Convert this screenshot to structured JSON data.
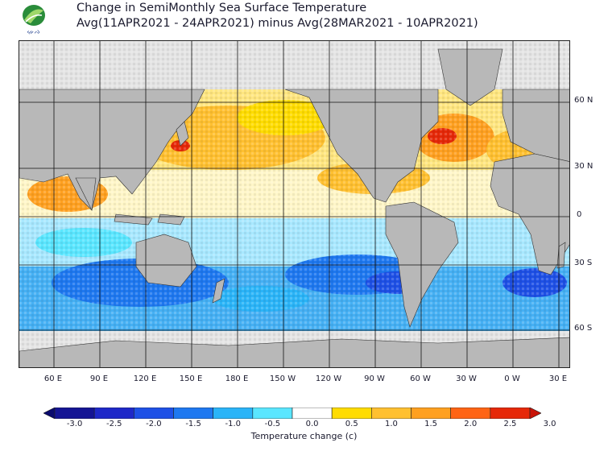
{
  "header": {
    "title_line1": "Change in SemiMonthly Sea Surface Temperature",
    "title_line2": "Avg(11APR2021 - 24APR2021) minus Avg(28MAR2021 - 10APR2021)",
    "logo_text": "ᨀᨙᨄ"
  },
  "map": {
    "lat_labels": [
      "60 N",
      "30 N",
      "0",
      "30 S",
      "60 S"
    ],
    "lon_labels": [
      "60 E",
      "90 E",
      "120 E",
      "150 E",
      "180 E",
      "150 W",
      "120 W",
      "90 W",
      "60 W",
      "30 W",
      "0 W",
      "30 E"
    ],
    "colors": {
      "land": "#b8b8b8",
      "ice": "#e4e4e4",
      "grid": "#111111"
    }
  },
  "legend": {
    "title": "Temperature change  (c)",
    "ticks": [
      "-3.0",
      "-2.5",
      "-2.0",
      "-1.5",
      "-1.0",
      "-0.5",
      "0.0",
      "0.5",
      "1.0",
      "1.5",
      "2.0",
      "2.5",
      "3.0"
    ],
    "colors": [
      "#0a0a6e",
      "#141494",
      "#1e28c8",
      "#1e50e6",
      "#1e78f0",
      "#2ab4f8",
      "#5ae6ff",
      "#ffffff",
      "#ffdc00",
      "#ffc030",
      "#ffa020",
      "#ff6414",
      "#e62808",
      "#c81408"
    ]
  }
}
